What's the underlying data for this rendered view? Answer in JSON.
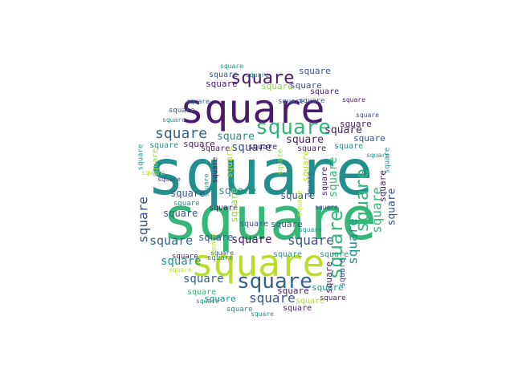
{
  "word": "square",
  "palette": {
    "dark_purple": "#481b6d",
    "indigo": "#3b528b",
    "blue": "#33638d",
    "teal": "#21908d",
    "green": "#35b779",
    "lime": "#8fd744",
    "yellow": "#b8de29"
  }
}
